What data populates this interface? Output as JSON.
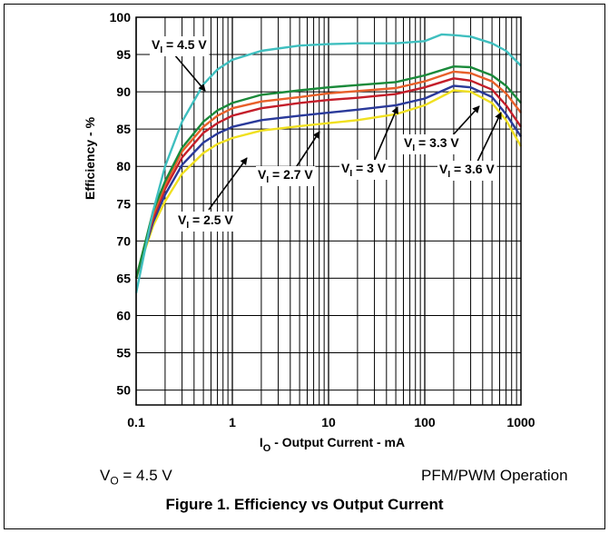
{
  "chart_data": {
    "type": "line",
    "x_scale": "log",
    "xlabel_main": "I",
    "xlabel_sub": "O",
    "xlabel_rest": " - Output Current - mA",
    "ylabel": "Efficiency - %",
    "xlim": [
      0.1,
      1000
    ],
    "ylim": [
      48,
      100
    ],
    "x_tick_labels": [
      "0.1",
      "1",
      "10",
      "100",
      "1000"
    ],
    "y_tick_labels": [
      "100",
      "95",
      "90",
      "85",
      "80",
      "75",
      "70",
      "65",
      "60",
      "55",
      "50"
    ],
    "grid": true,
    "series": [
      {
        "name": "4.5",
        "label_prefix": "V",
        "label_sub": "I",
        "label_rest": " = 4.5 V",
        "color": "#3fbfbf",
        "x": [
          0.1,
          0.12,
          0.15,
          0.2,
          0.3,
          0.5,
          0.7,
          1,
          2,
          5,
          10,
          20,
          50,
          100,
          150,
          200,
          300,
          500,
          700,
          1000
        ],
        "y": [
          63,
          68,
          74,
          80,
          86,
          91,
          93,
          94.3,
          95.5,
          96.2,
          96.4,
          96.5,
          96.5,
          96.8,
          97.7,
          97.6,
          97.4,
          96.5,
          95.5,
          93.5
        ]
      },
      {
        "name": "3.6",
        "label_prefix": "V",
        "label_sub": "I",
        "label_rest": " = 3.6 V",
        "color": "#1a8a3a",
        "x": [
          0.1,
          0.12,
          0.15,
          0.2,
          0.3,
          0.5,
          0.7,
          1,
          2,
          5,
          10,
          20,
          50,
          100,
          200,
          300,
          500,
          700,
          1000
        ],
        "y": [
          65,
          69,
          74,
          78,
          82.5,
          86,
          87.5,
          88.5,
          89.6,
          90.2,
          90.6,
          90.9,
          91.3,
          92.2,
          93.4,
          93.3,
          92.2,
          90.8,
          88.5
        ]
      },
      {
        "name": "3.3",
        "label_prefix": "V",
        "label_sub": "I",
        "label_rest": " = 3.3 V",
        "color": "#e8602a",
        "x": [
          0.1,
          0.12,
          0.15,
          0.2,
          0.3,
          0.5,
          0.7,
          1,
          2,
          5,
          10,
          20,
          50,
          100,
          200,
          300,
          500,
          700,
          1000
        ],
        "y": [
          65,
          69,
          73.5,
          77.5,
          82,
          85.3,
          86.8,
          87.8,
          88.7,
          89.3,
          89.8,
          90.1,
          90.5,
          91.4,
          92.7,
          92.5,
          91.4,
          89.8,
          87.2
        ]
      },
      {
        "name": "3",
        "label_prefix": "V",
        "label_sub": "I",
        "label_rest": " = 3 V",
        "color": "#c41e2a",
        "x": [
          0.1,
          0.12,
          0.15,
          0.2,
          0.3,
          0.5,
          0.7,
          1,
          2,
          5,
          10,
          20,
          50,
          100,
          200,
          300,
          500,
          700,
          1000
        ],
        "y": [
          65,
          68.8,
          73,
          77,
          81.2,
          84.5,
          85.8,
          86.8,
          87.8,
          88.5,
          88.9,
          89.2,
          89.7,
          90.6,
          91.8,
          91.5,
          90.3,
          88.2,
          85.3
        ]
      },
      {
        "name": "2.7",
        "label_prefix": "V",
        "label_sub": "I",
        "label_rest": " = 2.7 V",
        "color": "#2a3a9a",
        "x": [
          0.1,
          0.12,
          0.15,
          0.2,
          0.3,
          0.5,
          0.7,
          1,
          2,
          5,
          10,
          20,
          50,
          100,
          200,
          300,
          500,
          700,
          1000
        ],
        "y": [
          65,
          68.5,
          72.5,
          76.2,
          80.2,
          83.2,
          84.4,
          85.3,
          86.2,
          86.8,
          87.2,
          87.6,
          88.2,
          89.1,
          90.8,
          90.6,
          89.3,
          87.0,
          84.0
        ]
      },
      {
        "name": "2.5",
        "label_prefix": "V",
        "label_sub": "I",
        "label_rest": " = 2.5 V",
        "color": "#f0e020",
        "x": [
          0.1,
          0.12,
          0.15,
          0.2,
          0.3,
          0.5,
          0.7,
          1,
          2,
          5,
          10,
          20,
          50,
          100,
          200,
          300,
          500,
          700,
          1000
        ],
        "y": [
          65,
          68.3,
          72,
          75.3,
          79,
          81.8,
          83,
          83.8,
          84.8,
          85.4,
          85.8,
          86.2,
          87,
          88.2,
          90.2,
          90.0,
          88.5,
          86.2,
          82.7
        ]
      }
    ]
  },
  "notes": {
    "vo_prefix": "V",
    "vo_sub": "O",
    "vo_rest": " = 4.5 V",
    "mode": "PFM/PWM Operation"
  },
  "caption": "Figure 1. Efficiency vs Output Current"
}
